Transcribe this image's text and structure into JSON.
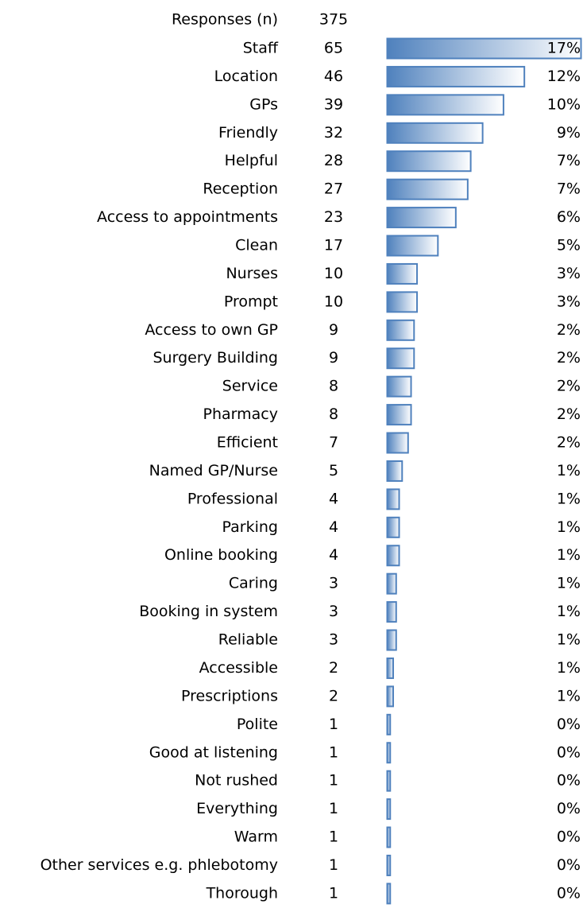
{
  "chart_data": {
    "type": "bar",
    "total_label": "Responses (n)",
    "total": 375,
    "categories": [
      "Staff",
      "Location",
      "GPs",
      "Friendly",
      "Helpful",
      "Reception",
      "Access to appointments",
      "Clean",
      "Nurses",
      "Prompt",
      "Access to own GP",
      "Surgery Building",
      "Service",
      "Pharmacy",
      "Efficient",
      "Named GP/Nurse",
      "Professional",
      "Parking",
      "Online booking",
      "Caring",
      "Booking in system",
      "Reliable",
      "Accessible",
      "Prescriptions",
      "Polite",
      "Good at listening",
      "Not rushed",
      "Everything",
      "Warm",
      "Other services e.g. phlebotomy",
      "Thorough"
    ],
    "values": [
      65,
      46,
      39,
      32,
      28,
      27,
      23,
      17,
      10,
      10,
      9,
      9,
      8,
      8,
      7,
      5,
      4,
      4,
      4,
      3,
      3,
      3,
      2,
      2,
      1,
      1,
      1,
      1,
      1,
      1,
      1
    ],
    "shares": [
      "17%",
      "12%",
      "10%",
      "9%",
      "7%",
      "7%",
      "6%",
      "5%",
      "3%",
      "3%",
      "2%",
      "2%",
      "2%",
      "2%",
      "2%",
      "1%",
      "1%",
      "1%",
      "1%",
      "1%",
      "1%",
      "1%",
      "1%",
      "1%",
      "0%",
      "0%",
      "0%",
      "0%",
      "0%",
      "0%",
      "0%"
    ],
    "color": "#4f81bd"
  }
}
